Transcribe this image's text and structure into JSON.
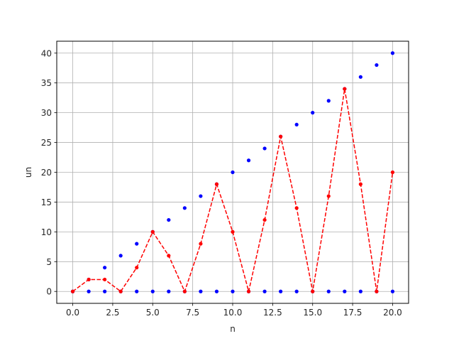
{
  "chart_data": {
    "type": "scatter",
    "title": "",
    "xlabel": "n",
    "ylabel": "un",
    "xlim": [
      -1,
      21
    ],
    "ylim": [
      -2,
      42
    ],
    "xticks": [
      0.0,
      2.5,
      5.0,
      7.5,
      10.0,
      12.5,
      15.0,
      17.5,
      20.0
    ],
    "xtick_labels": [
      "0.0",
      "2.5",
      "5.0",
      "7.5",
      "10.0",
      "12.5",
      "15.0",
      "17.5",
      "20.0"
    ],
    "yticks": [
      0,
      5,
      10,
      15,
      20,
      25,
      30,
      35,
      40
    ],
    "ytick_labels": [
      "0",
      "5",
      "10",
      "15",
      "20",
      "25",
      "30",
      "35",
      "40"
    ],
    "grid": true,
    "legend": "none",
    "series": [
      {
        "style": "points",
        "color": "#0000ff",
        "x": [
          0,
          1,
          2,
          3,
          4,
          5,
          6,
          7,
          8,
          9,
          10,
          11,
          12,
          13,
          14,
          15,
          16,
          17,
          18,
          19,
          20
        ],
        "y": [
          0,
          2,
          4,
          6,
          8,
          10,
          12,
          14,
          16,
          18,
          20,
          22,
          24,
          26,
          28,
          30,
          32,
          34,
          36,
          38,
          40
        ]
      },
      {
        "style": "points",
        "color": "#0000ff",
        "x": [
          0,
          1,
          2,
          3,
          4,
          5,
          6,
          7,
          8,
          9,
          10,
          11,
          12,
          13,
          14,
          15,
          16,
          17,
          18,
          19,
          20
        ],
        "y": [
          0,
          0,
          0,
          0,
          0,
          0,
          0,
          0,
          0,
          0,
          0,
          0,
          0,
          0,
          0,
          0,
          0,
          0,
          0,
          0,
          0
        ]
      },
      {
        "style": "dashed-line-points",
        "color": "#ff0000",
        "x": [
          0,
          1,
          2,
          3,
          4,
          5,
          6,
          7,
          8,
          9,
          10,
          11,
          12,
          13,
          14,
          15,
          16,
          17,
          18,
          19,
          20
        ],
        "y": [
          0,
          2,
          2,
          0,
          4,
          10,
          6,
          0,
          8,
          18,
          10,
          0,
          12,
          26,
          14,
          0,
          16,
          34,
          18,
          0,
          20
        ]
      }
    ]
  }
}
